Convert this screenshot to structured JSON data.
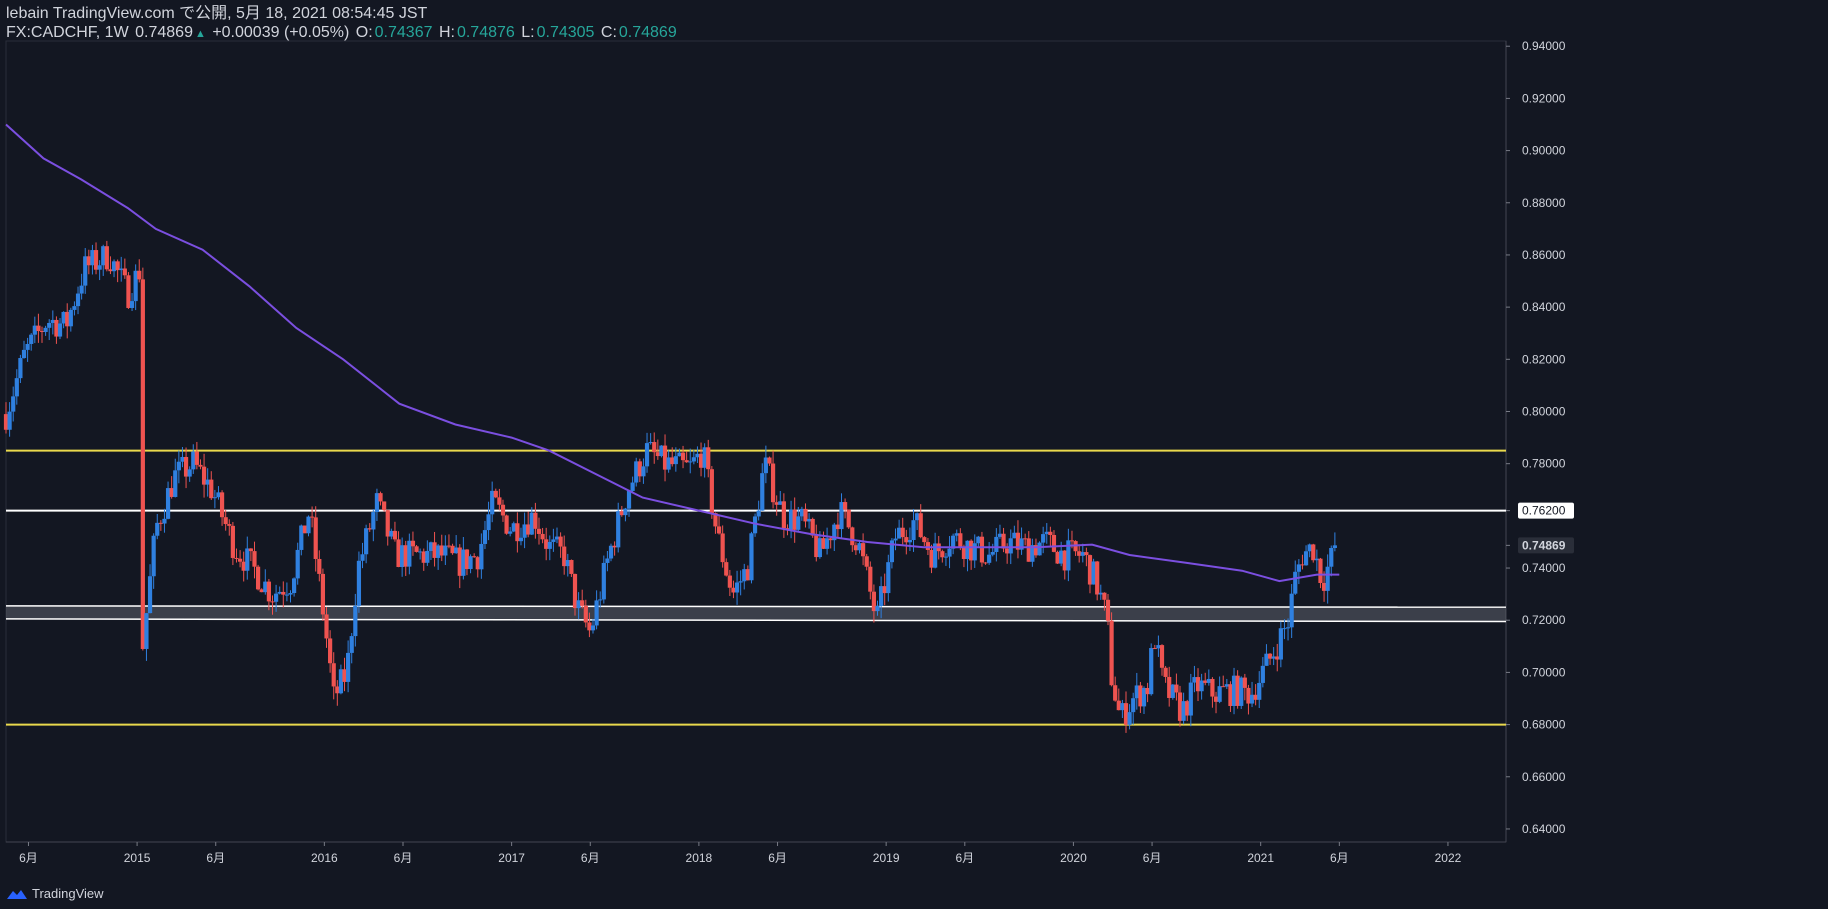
{
  "header": {
    "line1": "lebain TradingView.com で公開, 5月 18, 2021 08:54:45 JST",
    "symbol_tf": "FX:CADCHF, 1W",
    "last": "0.74869",
    "arrow": "▲",
    "change": "+0.00039 (+0.05%)",
    "o_label": "O:",
    "o": "0.74367",
    "h_label": "H:",
    "h": "0.74876",
    "l_label": "L:",
    "l": "0.74305",
    "c_label": "C:",
    "c": "0.74869"
  },
  "footer": {
    "brand": "TradingView"
  },
  "colors": {
    "background": "#131722",
    "up": "#2f80e0",
    "down": "#ef5350",
    "ma": "#7b4fe0",
    "yellow_line": "#e9d94d",
    "white_line": "#ffffff",
    "axis_text": "#d1d4dc"
  },
  "chart_data": {
    "type": "candlestick",
    "symbol": "FX:CADCHF",
    "timeframe": "1W",
    "ylim": [
      0.635,
      0.942
    ],
    "y_ticks": [
      "0.94000",
      "0.92000",
      "0.90000",
      "0.88000",
      "0.86000",
      "0.84000",
      "0.82000",
      "0.80000",
      "0.78000",
      "0.76200",
      "0.74869",
      "0.74000",
      "0.72000",
      "0.70000",
      "0.68000",
      "0.66000",
      "0.64000"
    ],
    "price_labels": {
      "0.76200": 0.762,
      "0.74869": 0.74869
    },
    "x_ticks": [
      {
        "label": "6月",
        "date": 2014.42
      },
      {
        "label": "2015",
        "date": 2015.0
      },
      {
        "label": "6月",
        "date": 2015.42
      },
      {
        "label": "2016",
        "date": 2016.0
      },
      {
        "label": "6月",
        "date": 2016.42
      },
      {
        "label": "2017",
        "date": 2017.0
      },
      {
        "label": "6月",
        "date": 2017.42
      },
      {
        "label": "2018",
        "date": 2018.0
      },
      {
        "label": "6月",
        "date": 2018.42
      },
      {
        "label": "2019",
        "date": 2019.0
      },
      {
        "label": "6月",
        "date": 2019.42
      },
      {
        "label": "2020",
        "date": 2020.0
      },
      {
        "label": "6月",
        "date": 2020.42
      },
      {
        "label": "2021",
        "date": 2021.0
      },
      {
        "label": "6月",
        "date": 2021.42
      },
      {
        "label": "2022",
        "date": 2022.0
      }
    ],
    "xlim": [
      2014.3,
      2022.31
    ],
    "horizontal_lines": [
      {
        "price": 0.785,
        "color": "yellow",
        "style": "solid"
      },
      {
        "price": 0.762,
        "color": "white",
        "style": "solid"
      },
      {
        "price": 0.68,
        "color": "yellow",
        "style": "solid"
      }
    ],
    "zone": {
      "top_start": 0.7255,
      "top_end": 0.725,
      "bottom_start": 0.7205,
      "bottom_end": 0.7195
    },
    "close_path": [
      [
        2014.3,
        0.799
      ],
      [
        2014.4,
        0.822
      ],
      [
        2014.52,
        0.835
      ],
      [
        2014.62,
        0.833
      ],
      [
        2014.72,
        0.855
      ],
      [
        2014.85,
        0.86
      ],
      [
        2014.95,
        0.845
      ],
      [
        2015.02,
        0.855
      ],
      [
        2015.03,
        0.71
      ],
      [
        2015.1,
        0.755
      ],
      [
        2015.2,
        0.775
      ],
      [
        2015.3,
        0.78
      ],
      [
        2015.4,
        0.77
      ],
      [
        2015.52,
        0.748
      ],
      [
        2015.62,
        0.74
      ],
      [
        2015.72,
        0.73
      ],
      [
        2015.82,
        0.735
      ],
      [
        2015.92,
        0.762
      ],
      [
        2016.0,
        0.72
      ],
      [
        2016.05,
        0.69
      ],
      [
        2016.12,
        0.7
      ],
      [
        2016.18,
        0.74
      ],
      [
        2016.28,
        0.765
      ],
      [
        2016.38,
        0.745
      ],
      [
        2016.5,
        0.745
      ],
      [
        2016.62,
        0.745
      ],
      [
        2016.72,
        0.742
      ],
      [
        2016.82,
        0.745
      ],
      [
        2016.9,
        0.765
      ],
      [
        2017.0,
        0.755
      ],
      [
        2017.12,
        0.76
      ],
      [
        2017.2,
        0.748
      ],
      [
        2017.28,
        0.745
      ],
      [
        2017.35,
        0.725
      ],
      [
        2017.42,
        0.715
      ],
      [
        2017.52,
        0.745
      ],
      [
        2017.62,
        0.77
      ],
      [
        2017.72,
        0.785
      ],
      [
        2017.82,
        0.78
      ],
      [
        2017.95,
        0.778
      ],
      [
        2018.02,
        0.785
      ],
      [
        2018.1,
        0.752
      ],
      [
        2018.18,
        0.73
      ],
      [
        2018.26,
        0.74
      ],
      [
        2018.35,
        0.78
      ],
      [
        2018.45,
        0.76
      ],
      [
        2018.55,
        0.758
      ],
      [
        2018.65,
        0.745
      ],
      [
        2018.75,
        0.762
      ],
      [
        2018.85,
        0.75
      ],
      [
        2018.95,
        0.72
      ],
      [
        2019.05,
        0.752
      ],
      [
        2019.15,
        0.758
      ],
      [
        2019.25,
        0.745
      ],
      [
        2019.35,
        0.752
      ],
      [
        2019.45,
        0.748
      ],
      [
        2019.55,
        0.745
      ],
      [
        2019.65,
        0.75
      ],
      [
        2019.75,
        0.748
      ],
      [
        2019.85,
        0.75
      ],
      [
        2019.95,
        0.745
      ],
      [
        2020.05,
        0.745
      ],
      [
        2020.12,
        0.735
      ],
      [
        2020.18,
        0.72
      ],
      [
        2020.2,
        0.7
      ],
      [
        2020.25,
        0.682
      ],
      [
        2020.32,
        0.69
      ],
      [
        2020.4,
        0.695
      ],
      [
        2020.43,
        0.715
      ],
      [
        2020.48,
        0.695
      ],
      [
        2020.58,
        0.685
      ],
      [
        2020.66,
        0.695
      ],
      [
        2020.75,
        0.692
      ],
      [
        2020.85,
        0.693
      ],
      [
        2020.95,
        0.692
      ],
      [
        2021.05,
        0.705
      ],
      [
        2021.15,
        0.72
      ],
      [
        2021.18,
        0.735
      ],
      [
        2021.22,
        0.745
      ],
      [
        2021.28,
        0.748
      ],
      [
        2021.33,
        0.735
      ],
      [
        2021.38,
        0.744
      ],
      [
        2021.41,
        0.7487
      ]
    ],
    "ma200_path": [
      [
        2014.3,
        0.91
      ],
      [
        2014.5,
        0.897
      ],
      [
        2014.7,
        0.889
      ],
      [
        2014.95,
        0.878
      ],
      [
        2015.1,
        0.87
      ],
      [
        2015.35,
        0.862
      ],
      [
        2015.6,
        0.848
      ],
      [
        2015.85,
        0.832
      ],
      [
        2016.1,
        0.82
      ],
      [
        2016.4,
        0.803
      ],
      [
        2016.7,
        0.795
      ],
      [
        2017.0,
        0.79
      ],
      [
        2017.2,
        0.785
      ],
      [
        2017.45,
        0.776
      ],
      [
        2017.7,
        0.767
      ],
      [
        2018.0,
        0.762
      ],
      [
        2018.3,
        0.757
      ],
      [
        2018.6,
        0.753
      ],
      [
        2018.9,
        0.75
      ],
      [
        2019.2,
        0.748
      ],
      [
        2019.5,
        0.748
      ],
      [
        2019.8,
        0.748
      ],
      [
        2020.1,
        0.749
      ],
      [
        2020.3,
        0.745
      ],
      [
        2020.6,
        0.742
      ],
      [
        2020.9,
        0.739
      ],
      [
        2021.1,
        0.735
      ],
      [
        2021.3,
        0.7375
      ],
      [
        2021.42,
        0.7375
      ]
    ]
  }
}
